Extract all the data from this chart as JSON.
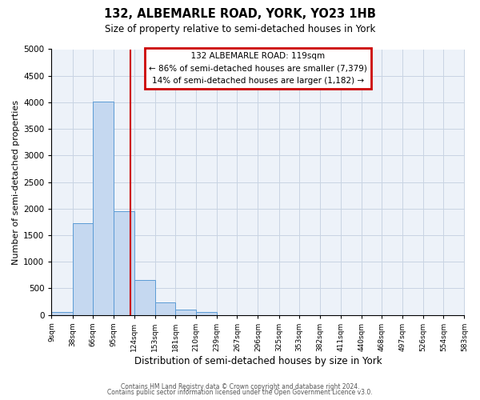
{
  "title": "132, ALBEMARLE ROAD, YORK, YO23 1HB",
  "subtitle": "Size of property relative to semi-detached houses in York",
  "xlabel": "Distribution of semi-detached houses by size in York",
  "ylabel": "Number of semi-detached properties",
  "property_label": "132 ALBEMARLE ROAD: 119sqm",
  "pct_smaller": 86,
  "count_smaller": 7379,
  "pct_larger": 14,
  "count_larger": 1182,
  "bin_edges": [
    9,
    38,
    66,
    95,
    124,
    153,
    181,
    210,
    239,
    267,
    296,
    325,
    353,
    382,
    411,
    440,
    468,
    497,
    526,
    554,
    583
  ],
  "bin_counts": [
    50,
    1730,
    4020,
    1950,
    650,
    240,
    95,
    55,
    0,
    0,
    0,
    0,
    0,
    0,
    0,
    0,
    0,
    0,
    0,
    0
  ],
  "bar_color": "#c5d8f0",
  "bar_edge_color": "#5b9bd5",
  "vline_color": "#cc0000",
  "vline_x": 119,
  "annotation_box_color": "#cc0000",
  "grid_color": "#c8d4e3",
  "background_color": "#edf2f9",
  "ylim": [
    0,
    5000
  ],
  "yticks": [
    0,
    500,
    1000,
    1500,
    2000,
    2500,
    3000,
    3500,
    4000,
    4500,
    5000
  ],
  "footer_line1": "Contains HM Land Registry data © Crown copyright and database right 2024.",
  "footer_line2": "Contains public sector information licensed under the Open Government Licence v3.0."
}
